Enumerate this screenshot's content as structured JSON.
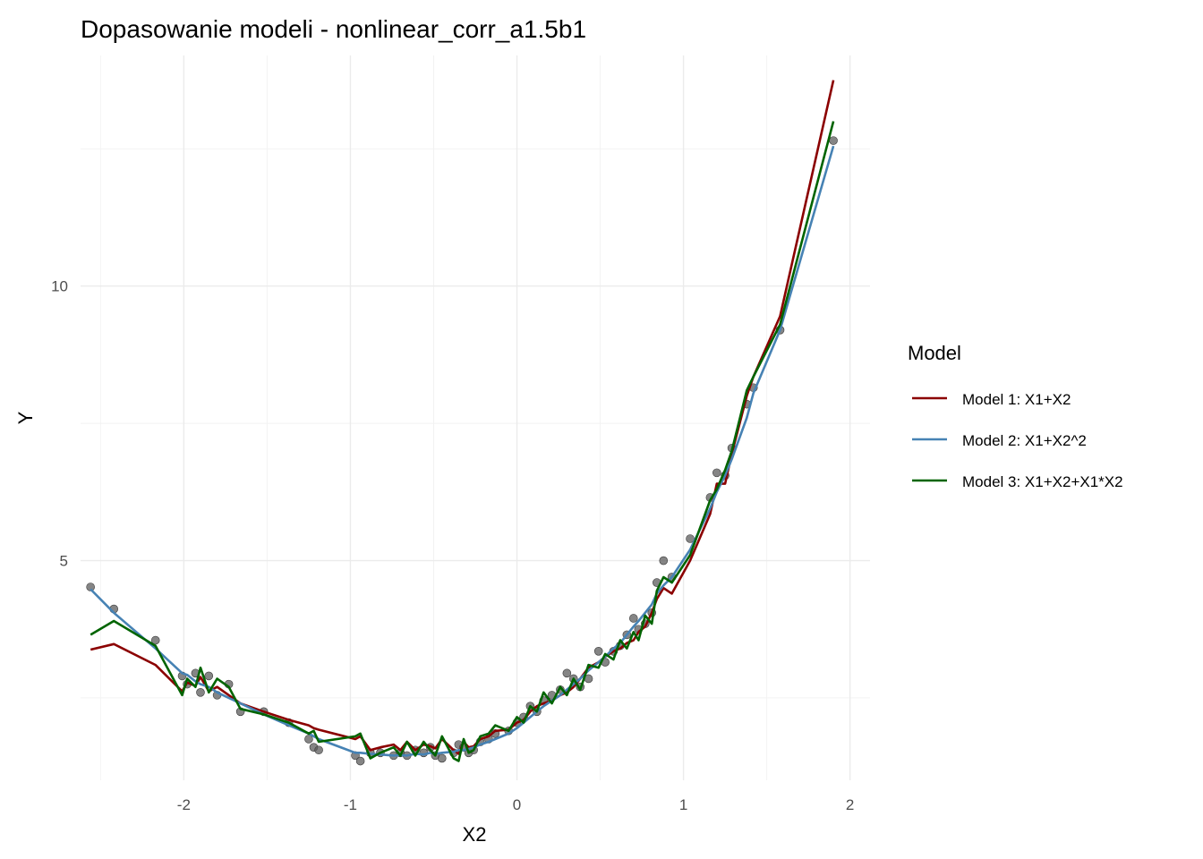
{
  "chart_data": {
    "type": "scatter",
    "title": "Dopasowanie modeli - nonlinear_corr_a1.5b1",
    "xlabel": "X2",
    "ylabel": "Y",
    "xlim": [
      -2.62,
      2.12
    ],
    "ylim": [
      1.0,
      14.2
    ],
    "x_ticks": [
      -2,
      -1,
      0,
      1,
      2
    ],
    "y_ticks": [
      5,
      10
    ],
    "x_tick_labels": [
      "-2",
      "-1",
      "0",
      "1",
      "2"
    ],
    "y_tick_labels": [
      "5",
      "10"
    ],
    "grid": true,
    "legend": {
      "title": "Model",
      "position": "right"
    },
    "points": {
      "x": [
        -2.56,
        -2.42,
        -2.17,
        -2.01,
        -1.98,
        -1.93,
        -1.9,
        -1.85,
        -1.8,
        -1.73,
        -1.66,
        -1.52,
        -1.37,
        -1.25,
        -1.22,
        -1.19,
        -0.97,
        -0.94,
        -0.88,
        -0.82,
        -0.74,
        -0.7,
        -0.66,
        -0.61,
        -0.56,
        -0.52,
        -0.49,
        -0.45,
        -0.38,
        -0.35,
        -0.32,
        -0.29,
        -0.26,
        -0.22,
        -0.17,
        -0.13,
        -0.05,
        0.0,
        0.04,
        0.08,
        0.12,
        0.16,
        0.21,
        0.26,
        0.3,
        0.34,
        0.38,
        0.43,
        0.49,
        0.53,
        0.58,
        0.62,
        0.66,
        0.7,
        0.73,
        0.77,
        0.81,
        0.84,
        0.88,
        0.93,
        1.04,
        1.16,
        1.2,
        1.25,
        1.29,
        1.38,
        1.42,
        1.58,
        1.9
      ],
      "y": [
        4.52,
        4.12,
        3.55,
        2.9,
        2.75,
        2.95,
        2.6,
        2.9,
        2.55,
        2.75,
        2.25,
        2.25,
        2.05,
        1.75,
        1.6,
        1.55,
        1.45,
        1.35,
        1.5,
        1.5,
        1.45,
        1.5,
        1.45,
        1.55,
        1.5,
        1.6,
        1.45,
        1.4,
        1.5,
        1.65,
        1.6,
        1.5,
        1.55,
        1.7,
        1.75,
        1.85,
        1.9,
        2.05,
        2.15,
        2.35,
        2.25,
        2.45,
        2.55,
        2.65,
        2.95,
        2.85,
        2.7,
        2.85,
        3.35,
        3.15,
        3.35,
        3.45,
        3.65,
        3.95,
        3.75,
        3.85,
        4.05,
        4.6,
        5.0,
        4.7,
        5.4,
        6.15,
        6.6,
        6.55,
        7.05,
        7.85,
        8.15,
        9.2,
        12.65
      ]
    },
    "series": [
      {
        "name": "Model 1: X1+X2",
        "color": "#8b0000",
        "x": [
          -2.56,
          -2.42,
          -2.17,
          -2.01,
          -1.98,
          -1.93,
          -1.9,
          -1.85,
          -1.8,
          -1.73,
          -1.66,
          -1.52,
          -1.37,
          -1.25,
          -1.22,
          -1.19,
          -0.97,
          -0.94,
          -0.88,
          -0.82,
          -0.74,
          -0.7,
          -0.66,
          -0.61,
          -0.56,
          -0.52,
          -0.49,
          -0.45,
          -0.38,
          -0.35,
          -0.32,
          -0.29,
          -0.26,
          -0.22,
          -0.17,
          -0.13,
          -0.05,
          0.0,
          0.04,
          0.08,
          0.12,
          0.16,
          0.21,
          0.26,
          0.3,
          0.34,
          0.38,
          0.43,
          0.49,
          0.53,
          0.58,
          0.62,
          0.66,
          0.7,
          0.73,
          0.77,
          0.81,
          0.84,
          0.88,
          0.93,
          1.04,
          1.16,
          1.2,
          1.25,
          1.29,
          1.38,
          1.42,
          1.58,
          1.9
        ],
        "y": [
          3.38,
          3.48,
          3.1,
          2.62,
          2.78,
          2.72,
          2.88,
          2.62,
          2.7,
          2.55,
          2.4,
          2.25,
          2.1,
          2.0,
          1.95,
          1.92,
          1.75,
          1.8,
          1.55,
          1.6,
          1.65,
          1.55,
          1.7,
          1.55,
          1.65,
          1.62,
          1.58,
          1.75,
          1.55,
          1.48,
          1.7,
          1.6,
          1.62,
          1.75,
          1.8,
          1.9,
          1.92,
          2.05,
          2.1,
          2.25,
          2.35,
          2.4,
          2.45,
          2.55,
          2.6,
          2.7,
          2.85,
          3.05,
          3.15,
          3.25,
          3.35,
          3.4,
          3.5,
          3.55,
          3.7,
          3.8,
          4.05,
          4.3,
          4.5,
          4.4,
          5.0,
          5.85,
          6.4,
          6.4,
          6.95,
          8.0,
          8.35,
          9.45,
          13.75
        ]
      },
      {
        "name": "Model 2: X1+X2^2",
        "color": "#4682b4",
        "x": [
          -2.56,
          -2.42,
          -2.17,
          -2.01,
          -1.98,
          -1.93,
          -1.9,
          -1.85,
          -1.8,
          -1.73,
          -1.66,
          -1.52,
          -1.37,
          -1.25,
          -1.22,
          -1.19,
          -0.97,
          -0.94,
          -0.88,
          -0.82,
          -0.74,
          -0.7,
          -0.66,
          -0.61,
          -0.56,
          -0.52,
          -0.49,
          -0.45,
          -0.38,
          -0.35,
          -0.32,
          -0.29,
          -0.26,
          -0.22,
          -0.17,
          -0.13,
          -0.05,
          0.0,
          0.04,
          0.08,
          0.12,
          0.16,
          0.21,
          0.26,
          0.3,
          0.34,
          0.38,
          0.43,
          0.49,
          0.53,
          0.58,
          0.62,
          0.66,
          0.7,
          0.73,
          0.77,
          0.81,
          0.84,
          0.88,
          0.93,
          1.04,
          1.16,
          1.2,
          1.25,
          1.29,
          1.38,
          1.42,
          1.58,
          1.9
        ],
        "y": [
          4.48,
          4.05,
          3.4,
          2.95,
          2.92,
          2.8,
          2.75,
          2.7,
          2.6,
          2.5,
          2.4,
          2.2,
          2.0,
          1.85,
          1.8,
          1.75,
          1.5,
          1.5,
          1.48,
          1.47,
          1.45,
          1.46,
          1.45,
          1.48,
          1.47,
          1.5,
          1.48,
          1.5,
          1.52,
          1.55,
          1.55,
          1.57,
          1.6,
          1.65,
          1.7,
          1.75,
          1.85,
          1.95,
          2.05,
          2.15,
          2.25,
          2.35,
          2.45,
          2.55,
          2.65,
          2.75,
          2.85,
          3.0,
          3.15,
          3.25,
          3.4,
          3.5,
          3.65,
          3.8,
          3.9,
          4.05,
          4.2,
          4.4,
          4.55,
          4.7,
          5.2,
          5.95,
          6.25,
          6.55,
          6.85,
          7.6,
          8.05,
          9.2,
          12.55
        ]
      },
      {
        "name": "Model 3: X1+X2+X1*X2",
        "color": "#006400",
        "x": [
          -2.56,
          -2.42,
          -2.17,
          -2.01,
          -1.98,
          -1.93,
          -1.9,
          -1.85,
          -1.8,
          -1.73,
          -1.66,
          -1.52,
          -1.37,
          -1.25,
          -1.22,
          -1.19,
          -0.97,
          -0.94,
          -0.88,
          -0.82,
          -0.74,
          -0.7,
          -0.66,
          -0.61,
          -0.56,
          -0.52,
          -0.49,
          -0.45,
          -0.38,
          -0.35,
          -0.32,
          -0.29,
          -0.26,
          -0.22,
          -0.17,
          -0.13,
          -0.05,
          0.0,
          0.04,
          0.08,
          0.12,
          0.16,
          0.21,
          0.26,
          0.3,
          0.34,
          0.38,
          0.43,
          0.49,
          0.53,
          0.58,
          0.62,
          0.66,
          0.7,
          0.73,
          0.77,
          0.81,
          0.84,
          0.88,
          0.93,
          1.04,
          1.16,
          1.2,
          1.25,
          1.29,
          1.38,
          1.42,
          1.58,
          1.9
        ],
        "y": [
          3.65,
          3.9,
          3.45,
          2.55,
          2.85,
          2.7,
          3.05,
          2.6,
          2.85,
          2.7,
          2.3,
          2.2,
          2.05,
          1.85,
          1.9,
          1.7,
          1.8,
          1.85,
          1.4,
          1.5,
          1.6,
          1.45,
          1.7,
          1.45,
          1.7,
          1.55,
          1.45,
          1.8,
          1.4,
          1.35,
          1.75,
          1.5,
          1.55,
          1.8,
          1.85,
          2.0,
          1.9,
          2.15,
          2.05,
          2.35,
          2.25,
          2.6,
          2.4,
          2.7,
          2.55,
          2.85,
          2.65,
          3.1,
          3.05,
          3.3,
          3.2,
          3.55,
          3.4,
          3.7,
          3.55,
          4.0,
          3.85,
          4.45,
          4.7,
          4.6,
          5.1,
          6.1,
          6.3,
          6.65,
          7.0,
          8.1,
          8.35,
          9.3,
          13.0
        ]
      }
    ]
  }
}
